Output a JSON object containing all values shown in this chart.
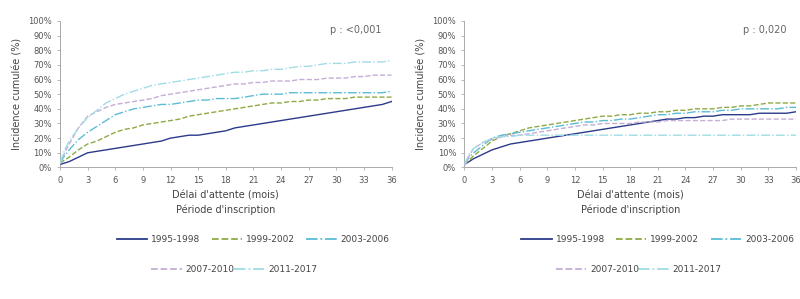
{
  "p_value_left": "p : <0,001",
  "p_value_right": "p : 0,020",
  "ylabel": "Incidence cumulée (%)",
  "xlabel": "Délai d'attente (mois)",
  "legend_title": "Période d'inscription",
  "legend_entries": [
    "1995-1998",
    "1999-2002",
    "2003-2006",
    "2007-2010",
    "2011-2017"
  ],
  "colors": {
    "1995-1998": "#2b3a8a",
    "1999-2002": "#8faa44",
    "2003-2006": "#5bbcd6",
    "2007-2010": "#c4aed4",
    "2011-2017": "#a0dde6"
  },
  "ls_map": {
    "1995-1998": "-",
    "1999-2002": "--",
    "2003-2006": "-.",
    "2007-2010": "--",
    "2011-2017": "-."
  },
  "left_curves": {
    "1995-1998": [
      [
        0,
        0.02
      ],
      [
        0.5,
        0.03
      ],
      [
        1,
        0.04
      ],
      [
        2,
        0.07
      ],
      [
        3,
        0.1
      ],
      [
        4,
        0.11
      ],
      [
        5,
        0.12
      ],
      [
        6,
        0.13
      ],
      [
        7,
        0.14
      ],
      [
        8,
        0.15
      ],
      [
        9,
        0.16
      ],
      [
        10,
        0.17
      ],
      [
        11,
        0.18
      ],
      [
        12,
        0.2
      ],
      [
        13,
        0.21
      ],
      [
        14,
        0.22
      ],
      [
        15,
        0.22
      ],
      [
        16,
        0.23
      ],
      [
        17,
        0.24
      ],
      [
        18,
        0.25
      ],
      [
        19,
        0.27
      ],
      [
        20,
        0.28
      ],
      [
        21,
        0.29
      ],
      [
        22,
        0.3
      ],
      [
        23,
        0.31
      ],
      [
        24,
        0.32
      ],
      [
        25,
        0.33
      ],
      [
        26,
        0.34
      ],
      [
        27,
        0.35
      ],
      [
        28,
        0.36
      ],
      [
        29,
        0.37
      ],
      [
        30,
        0.38
      ],
      [
        31,
        0.39
      ],
      [
        32,
        0.4
      ],
      [
        33,
        0.41
      ],
      [
        34,
        0.42
      ],
      [
        35,
        0.43
      ],
      [
        36,
        0.45
      ]
    ],
    "1999-2002": [
      [
        0,
        0.03
      ],
      [
        0.5,
        0.05
      ],
      [
        1,
        0.07
      ],
      [
        2,
        0.12
      ],
      [
        3,
        0.16
      ],
      [
        4,
        0.18
      ],
      [
        5,
        0.21
      ],
      [
        6,
        0.24
      ],
      [
        7,
        0.26
      ],
      [
        8,
        0.27
      ],
      [
        9,
        0.29
      ],
      [
        10,
        0.3
      ],
      [
        11,
        0.31
      ],
      [
        12,
        0.32
      ],
      [
        13,
        0.33
      ],
      [
        14,
        0.35
      ],
      [
        15,
        0.36
      ],
      [
        16,
        0.37
      ],
      [
        17,
        0.38
      ],
      [
        18,
        0.39
      ],
      [
        19,
        0.4
      ],
      [
        20,
        0.41
      ],
      [
        21,
        0.42
      ],
      [
        22,
        0.43
      ],
      [
        23,
        0.44
      ],
      [
        24,
        0.44
      ],
      [
        25,
        0.45
      ],
      [
        26,
        0.45
      ],
      [
        27,
        0.46
      ],
      [
        28,
        0.46
      ],
      [
        29,
        0.47
      ],
      [
        30,
        0.47
      ],
      [
        31,
        0.47
      ],
      [
        32,
        0.48
      ],
      [
        33,
        0.48
      ],
      [
        34,
        0.48
      ],
      [
        35,
        0.48
      ],
      [
        36,
        0.48
      ]
    ],
    "2003-2006": [
      [
        0,
        0.03
      ],
      [
        0.5,
        0.08
      ],
      [
        1,
        0.12
      ],
      [
        2,
        0.19
      ],
      [
        3,
        0.24
      ],
      [
        4,
        0.28
      ],
      [
        5,
        0.32
      ],
      [
        6,
        0.36
      ],
      [
        7,
        0.38
      ],
      [
        8,
        0.4
      ],
      [
        9,
        0.41
      ],
      [
        10,
        0.42
      ],
      [
        11,
        0.43
      ],
      [
        12,
        0.43
      ],
      [
        13,
        0.44
      ],
      [
        14,
        0.45
      ],
      [
        15,
        0.46
      ],
      [
        16,
        0.46
      ],
      [
        17,
        0.47
      ],
      [
        18,
        0.47
      ],
      [
        19,
        0.47
      ],
      [
        20,
        0.48
      ],
      [
        21,
        0.49
      ],
      [
        22,
        0.5
      ],
      [
        23,
        0.5
      ],
      [
        24,
        0.5
      ],
      [
        25,
        0.51
      ],
      [
        26,
        0.51
      ],
      [
        27,
        0.51
      ],
      [
        28,
        0.51
      ],
      [
        29,
        0.51
      ],
      [
        30,
        0.51
      ],
      [
        31,
        0.51
      ],
      [
        32,
        0.51
      ],
      [
        33,
        0.51
      ],
      [
        34,
        0.51
      ],
      [
        35,
        0.51
      ],
      [
        36,
        0.52
      ]
    ],
    "2007-2010": [
      [
        0,
        0.02
      ],
      [
        0.5,
        0.1
      ],
      [
        1,
        0.16
      ],
      [
        2,
        0.27
      ],
      [
        3,
        0.35
      ],
      [
        4,
        0.38
      ],
      [
        5,
        0.41
      ],
      [
        6,
        0.43
      ],
      [
        7,
        0.44
      ],
      [
        8,
        0.45
      ],
      [
        9,
        0.46
      ],
      [
        10,
        0.47
      ],
      [
        11,
        0.49
      ],
      [
        12,
        0.5
      ],
      [
        13,
        0.51
      ],
      [
        14,
        0.52
      ],
      [
        15,
        0.53
      ],
      [
        16,
        0.54
      ],
      [
        17,
        0.55
      ],
      [
        18,
        0.56
      ],
      [
        19,
        0.57
      ],
      [
        20,
        0.57
      ],
      [
        21,
        0.58
      ],
      [
        22,
        0.58
      ],
      [
        23,
        0.59
      ],
      [
        24,
        0.59
      ],
      [
        25,
        0.59
      ],
      [
        26,
        0.6
      ],
      [
        27,
        0.6
      ],
      [
        28,
        0.6
      ],
      [
        29,
        0.61
      ],
      [
        30,
        0.61
      ],
      [
        31,
        0.61
      ],
      [
        32,
        0.62
      ],
      [
        33,
        0.62
      ],
      [
        34,
        0.63
      ],
      [
        35,
        0.63
      ],
      [
        36,
        0.63
      ]
    ],
    "2011-2017": [
      [
        0,
        0.03
      ],
      [
        0.5,
        0.12
      ],
      [
        1,
        0.18
      ],
      [
        2,
        0.27
      ],
      [
        3,
        0.34
      ],
      [
        4,
        0.39
      ],
      [
        5,
        0.44
      ],
      [
        6,
        0.47
      ],
      [
        7,
        0.5
      ],
      [
        8,
        0.52
      ],
      [
        9,
        0.54
      ],
      [
        10,
        0.56
      ],
      [
        11,
        0.57
      ],
      [
        12,
        0.58
      ],
      [
        13,
        0.59
      ],
      [
        14,
        0.6
      ],
      [
        15,
        0.61
      ],
      [
        16,
        0.62
      ],
      [
        17,
        0.63
      ],
      [
        18,
        0.64
      ],
      [
        19,
        0.65
      ],
      [
        20,
        0.65
      ],
      [
        21,
        0.66
      ],
      [
        22,
        0.66
      ],
      [
        23,
        0.67
      ],
      [
        24,
        0.67
      ],
      [
        25,
        0.68
      ],
      [
        26,
        0.69
      ],
      [
        27,
        0.69
      ],
      [
        28,
        0.7
      ],
      [
        29,
        0.71
      ],
      [
        30,
        0.71
      ],
      [
        31,
        0.71
      ],
      [
        32,
        0.72
      ],
      [
        33,
        0.72
      ],
      [
        34,
        0.72
      ],
      [
        35,
        0.72
      ],
      [
        36,
        0.73
      ]
    ]
  },
  "right_curves": {
    "1995-1998": [
      [
        0,
        0.02
      ],
      [
        0.5,
        0.04
      ],
      [
        1,
        0.06
      ],
      [
        2,
        0.09
      ],
      [
        3,
        0.12
      ],
      [
        4,
        0.14
      ],
      [
        5,
        0.16
      ],
      [
        6,
        0.17
      ],
      [
        7,
        0.18
      ],
      [
        8,
        0.19
      ],
      [
        9,
        0.2
      ],
      [
        10,
        0.21
      ],
      [
        11,
        0.22
      ],
      [
        12,
        0.23
      ],
      [
        13,
        0.24
      ],
      [
        14,
        0.25
      ],
      [
        15,
        0.26
      ],
      [
        16,
        0.27
      ],
      [
        17,
        0.28
      ],
      [
        18,
        0.29
      ],
      [
        19,
        0.3
      ],
      [
        20,
        0.31
      ],
      [
        21,
        0.32
      ],
      [
        22,
        0.33
      ],
      [
        23,
        0.33
      ],
      [
        24,
        0.34
      ],
      [
        25,
        0.34
      ],
      [
        26,
        0.35
      ],
      [
        27,
        0.35
      ],
      [
        28,
        0.36
      ],
      [
        29,
        0.36
      ],
      [
        30,
        0.36
      ],
      [
        31,
        0.36
      ],
      [
        32,
        0.37
      ],
      [
        33,
        0.37
      ],
      [
        34,
        0.37
      ],
      [
        35,
        0.37
      ],
      [
        36,
        0.38
      ]
    ],
    "1999-2002": [
      [
        0,
        0.02
      ],
      [
        0.5,
        0.05
      ],
      [
        1,
        0.08
      ],
      [
        2,
        0.13
      ],
      [
        3,
        0.18
      ],
      [
        4,
        0.21
      ],
      [
        5,
        0.23
      ],
      [
        6,
        0.25
      ],
      [
        7,
        0.27
      ],
      [
        8,
        0.28
      ],
      [
        9,
        0.29
      ],
      [
        10,
        0.3
      ],
      [
        11,
        0.31
      ],
      [
        12,
        0.32
      ],
      [
        13,
        0.33
      ],
      [
        14,
        0.34
      ],
      [
        15,
        0.35
      ],
      [
        16,
        0.35
      ],
      [
        17,
        0.36
      ],
      [
        18,
        0.36
      ],
      [
        19,
        0.37
      ],
      [
        20,
        0.37
      ],
      [
        21,
        0.38
      ],
      [
        22,
        0.38
      ],
      [
        23,
        0.39
      ],
      [
        24,
        0.39
      ],
      [
        25,
        0.4
      ],
      [
        26,
        0.4
      ],
      [
        27,
        0.4
      ],
      [
        28,
        0.41
      ],
      [
        29,
        0.41
      ],
      [
        30,
        0.42
      ],
      [
        31,
        0.42
      ],
      [
        32,
        0.43
      ],
      [
        33,
        0.44
      ],
      [
        34,
        0.44
      ],
      [
        35,
        0.44
      ],
      [
        36,
        0.44
      ]
    ],
    "2003-2006": [
      [
        0,
        0.02
      ],
      [
        0.5,
        0.07
      ],
      [
        1,
        0.1
      ],
      [
        2,
        0.15
      ],
      [
        3,
        0.2
      ],
      [
        4,
        0.22
      ],
      [
        5,
        0.23
      ],
      [
        6,
        0.24
      ],
      [
        7,
        0.25
      ],
      [
        8,
        0.26
      ],
      [
        9,
        0.27
      ],
      [
        10,
        0.28
      ],
      [
        11,
        0.29
      ],
      [
        12,
        0.3
      ],
      [
        13,
        0.31
      ],
      [
        14,
        0.31
      ],
      [
        15,
        0.32
      ],
      [
        16,
        0.32
      ],
      [
        17,
        0.33
      ],
      [
        18,
        0.33
      ],
      [
        19,
        0.34
      ],
      [
        20,
        0.35
      ],
      [
        21,
        0.36
      ],
      [
        22,
        0.36
      ],
      [
        23,
        0.37
      ],
      [
        24,
        0.37
      ],
      [
        25,
        0.38
      ],
      [
        26,
        0.38
      ],
      [
        27,
        0.38
      ],
      [
        28,
        0.39
      ],
      [
        29,
        0.39
      ],
      [
        30,
        0.4
      ],
      [
        31,
        0.4
      ],
      [
        32,
        0.4
      ],
      [
        33,
        0.4
      ],
      [
        34,
        0.4
      ],
      [
        35,
        0.41
      ],
      [
        36,
        0.41
      ]
    ],
    "2007-2010": [
      [
        0,
        0.01
      ],
      [
        0.5,
        0.08
      ],
      [
        1,
        0.13
      ],
      [
        2,
        0.17
      ],
      [
        3,
        0.19
      ],
      [
        4,
        0.21
      ],
      [
        5,
        0.22
      ],
      [
        6,
        0.22
      ],
      [
        7,
        0.23
      ],
      [
        8,
        0.24
      ],
      [
        9,
        0.25
      ],
      [
        10,
        0.26
      ],
      [
        11,
        0.27
      ],
      [
        12,
        0.28
      ],
      [
        13,
        0.29
      ],
      [
        14,
        0.29
      ],
      [
        15,
        0.3
      ],
      [
        16,
        0.3
      ],
      [
        17,
        0.3
      ],
      [
        18,
        0.3
      ],
      [
        19,
        0.31
      ],
      [
        20,
        0.31
      ],
      [
        21,
        0.31
      ],
      [
        22,
        0.32
      ],
      [
        23,
        0.32
      ],
      [
        24,
        0.32
      ],
      [
        25,
        0.32
      ],
      [
        26,
        0.32
      ],
      [
        27,
        0.32
      ],
      [
        28,
        0.32
      ],
      [
        29,
        0.33
      ],
      [
        30,
        0.33
      ],
      [
        31,
        0.33
      ],
      [
        32,
        0.33
      ],
      [
        33,
        0.33
      ],
      [
        34,
        0.33
      ],
      [
        35,
        0.33
      ],
      [
        36,
        0.33
      ]
    ],
    "2011-2017": [
      [
        0,
        0.02
      ],
      [
        0.5,
        0.09
      ],
      [
        1,
        0.13
      ],
      [
        2,
        0.17
      ],
      [
        3,
        0.2
      ],
      [
        4,
        0.21
      ],
      [
        5,
        0.21
      ],
      [
        6,
        0.22
      ],
      [
        7,
        0.22
      ],
      [
        8,
        0.22
      ],
      [
        9,
        0.22
      ],
      [
        10,
        0.22
      ],
      [
        11,
        0.22
      ],
      [
        12,
        0.22
      ],
      [
        13,
        0.22
      ],
      [
        14,
        0.22
      ],
      [
        15,
        0.22
      ],
      [
        16,
        0.22
      ],
      [
        17,
        0.22
      ],
      [
        18,
        0.22
      ],
      [
        19,
        0.22
      ],
      [
        20,
        0.22
      ],
      [
        21,
        0.22
      ],
      [
        22,
        0.22
      ],
      [
        23,
        0.22
      ],
      [
        24,
        0.22
      ],
      [
        25,
        0.22
      ],
      [
        26,
        0.22
      ],
      [
        27,
        0.22
      ],
      [
        28,
        0.22
      ],
      [
        29,
        0.22
      ],
      [
        30,
        0.22
      ],
      [
        31,
        0.22
      ],
      [
        32,
        0.22
      ],
      [
        33,
        0.22
      ],
      [
        34,
        0.22
      ],
      [
        35,
        0.22
      ],
      [
        36,
        0.22
      ]
    ]
  },
  "yticks": [
    0.0,
    0.1,
    0.2,
    0.3,
    0.4,
    0.5,
    0.6,
    0.7,
    0.8,
    0.9,
    1.0
  ],
  "xticks": [
    0,
    3,
    6,
    9,
    12,
    15,
    18,
    21,
    24,
    27,
    30,
    33,
    36
  ],
  "ylim": [
    0,
    1.0
  ],
  "xlim": [
    0,
    36
  ],
  "bg_color": "#ffffff",
  "spine_color": "#aaaaaa",
  "tick_color": "#555555",
  "text_color": "#444444",
  "p_color": "#666666",
  "lw": 1.0,
  "fontsize_tick": 6.0,
  "fontsize_label": 7.0,
  "fontsize_pval": 7.0,
  "fontsize_legend": 6.5
}
